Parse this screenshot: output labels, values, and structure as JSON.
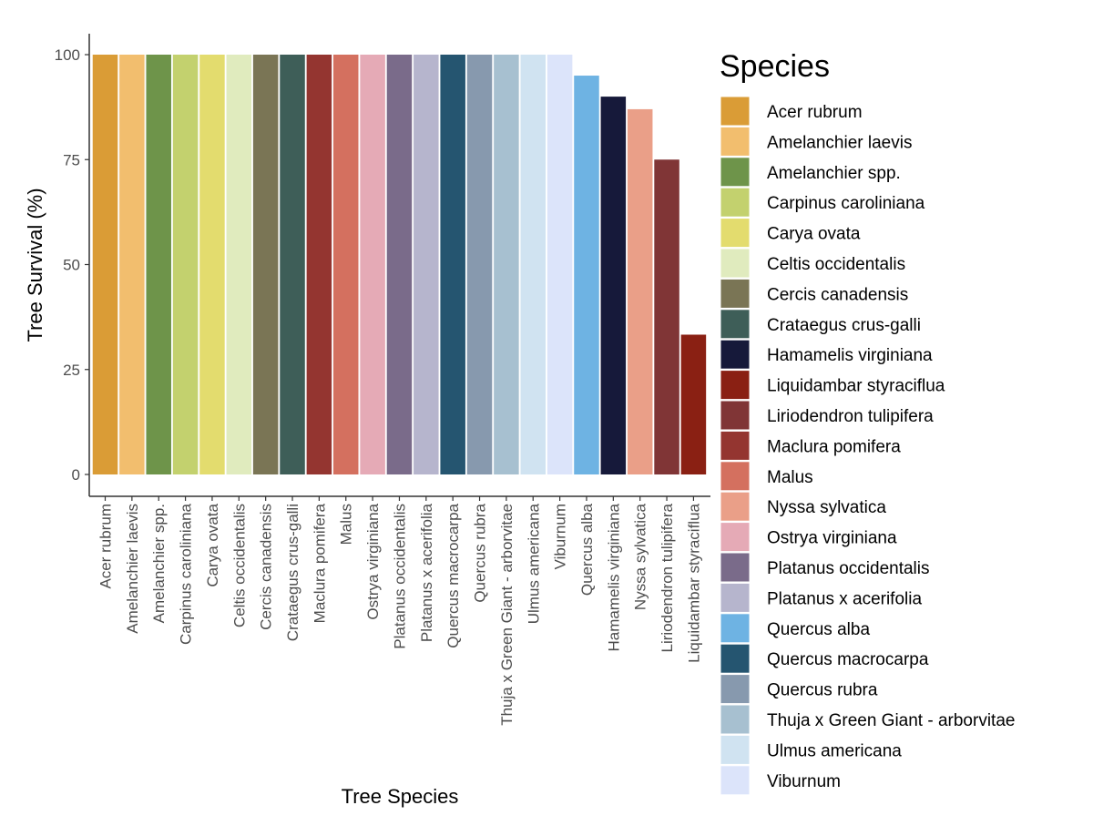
{
  "chart_data": {
    "type": "bar",
    "title": "",
    "xlabel": "Tree Species",
    "ylabel": "Tree Survival (%)",
    "ylim": [
      0,
      100
    ],
    "yticks": [
      0,
      25,
      50,
      75,
      100
    ],
    "grid": false,
    "legend": {
      "title": "Species",
      "placement": "right"
    },
    "categories": [
      "Acer rubrum",
      "Amelanchier laevis",
      "Amelanchier spp.",
      "Carpinus caroliniana",
      "Carya ovata",
      "Celtis occidentalis",
      "Cercis canadensis",
      "Crataegus crus-galli",
      "Maclura pomifera",
      "Malus",
      "Ostrya virginiana",
      "Platanus occidentalis",
      "Platanus x acerifolia",
      "Quercus macrocarpa",
      "Quercus rubra",
      "Thuja x Green Giant - arborvitae",
      "Ulmus americana",
      "Viburnum",
      "Quercus alba",
      "Hamamelis virginiana",
      "Nyssa sylvatica",
      "Liriodendron tulipifera",
      "Liquidambar styraciflua"
    ],
    "values": [
      100,
      100,
      100,
      100,
      100,
      100,
      100,
      100,
      100,
      100,
      100,
      100,
      100,
      100,
      100,
      100,
      100,
      100,
      95,
      90,
      87,
      75,
      33.3
    ],
    "legend_entries": [
      "Acer rubrum",
      "Amelanchier laevis",
      "Amelanchier spp.",
      "Carpinus caroliniana",
      "Carya ovata",
      "Celtis occidentalis",
      "Cercis canadensis",
      "Crataegus crus-galli",
      "Hamamelis virginiana",
      "Liquidambar styraciflua",
      "Liriodendron tulipifera",
      "Maclura pomifera",
      "Malus",
      "Nyssa sylvatica",
      "Ostrya virginiana",
      "Platanus occidentalis",
      "Platanus x acerifolia",
      "Quercus alba",
      "Quercus macrocarpa",
      "Quercus rubra",
      "Thuja x Green Giant - arborvitae",
      "Ulmus americana",
      "Viburnum"
    ],
    "colors": {
      "Acer rubrum": "#DA9C36",
      "Amelanchier laevis": "#F2BE6E",
      "Amelanchier spp.": "#6E944A",
      "Carpinus caroliniana": "#C3D16E",
      "Carya ovata": "#E3DC6E",
      "Celtis occidentalis": "#E0EBBE",
      "Cercis canadensis": "#7A7555",
      "Crataegus crus-galli": "#3E5E58",
      "Hamamelis virginiana": "#16193A",
      "Liquidambar styraciflua": "#8A2013",
      "Liriodendron tulipifera": "#803536",
      "Maclura pomifera": "#943530",
      "Malus": "#D4705F",
      "Nyssa sylvatica": "#EA9F88",
      "Ostrya virginiana": "#E5AAB6",
      "Platanus occidentalis": "#7A6B8A",
      "Platanus x acerifolia": "#B6B5CD",
      "Quercus alba": "#6EB3E3",
      "Quercus macrocarpa": "#255570",
      "Quercus rubra": "#8799AE",
      "Thuja x Green Giant - arborvitae": "#A7C0D0",
      "Ulmus americana": "#D0E3F1",
      "Viburnum": "#DCE4FA"
    }
  }
}
